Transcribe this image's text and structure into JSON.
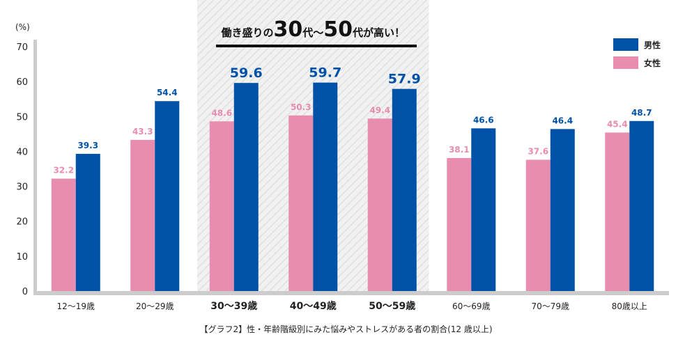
{
  "chart_data": {
    "type": "bar",
    "ylabel": "(%)",
    "ylim": [
      0,
      70
    ],
    "yticks": [
      0,
      10,
      20,
      30,
      40,
      50,
      60,
      70
    ],
    "grid": false,
    "legend_position": "top-right",
    "categories": [
      "12～19歳",
      "20～29歳",
      "30～39歳",
      "40～49歳",
      "50～59歳",
      "60～69歳",
      "70～79歳",
      "80歳以上"
    ],
    "emphasized_categories": [
      2,
      3,
      4
    ],
    "series": [
      {
        "name": "女性",
        "color": "#e88cb0",
        "label_color": "#e88cb0",
        "values": [
          32.2,
          43.3,
          48.6,
          50.3,
          49.4,
          38.1,
          37.6,
          45.4
        ]
      },
      {
        "name": "男性",
        "color": "#0052a8",
        "label_color": "#0052a8",
        "values": [
          39.3,
          54.4,
          59.6,
          59.7,
          57.9,
          46.6,
          46.4,
          48.7
        ]
      }
    ],
    "annotation": {
      "prefix": "働き盛りの",
      "num1": "30",
      "mid": "代～",
      "num2": "50",
      "suffix": "代が高い！"
    },
    "caption": "【グラフ2】性・年齢階級別にみた悩みやストレスがある者の割合(12 歳以上)"
  },
  "colors": {
    "axis": "#cccccc",
    "highlight_band": "#eeeeee",
    "text": "#222222"
  }
}
